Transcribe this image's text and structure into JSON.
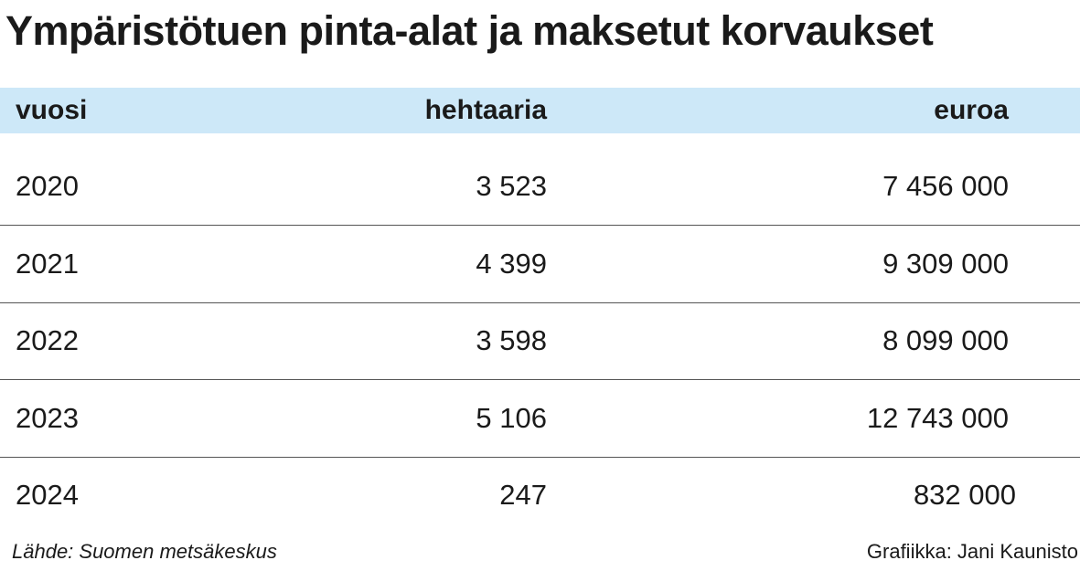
{
  "title": "Ympäristötuen pinta-alat ja maksetut korvaukset",
  "chart_data": {
    "type": "table",
    "columns": [
      "vuosi",
      "hehtaaria",
      "euroa"
    ],
    "rows": [
      [
        "2020",
        "3 523",
        "7 456 000"
      ],
      [
        "2021",
        "4 399",
        "9 309 000"
      ],
      [
        "2022",
        "3 598",
        "8 099 000"
      ],
      [
        "2023",
        "5 106",
        "12 743 000"
      ],
      [
        "2024",
        "247",
        "832 000"
      ]
    ]
  },
  "source": "Lähde: Suomen metsäkeskus",
  "credit": "Grafiikka: Jani Kaunisto",
  "colors": {
    "header_bg": "#cde8f8",
    "text": "#1a1a1a",
    "rule": "#555555"
  }
}
